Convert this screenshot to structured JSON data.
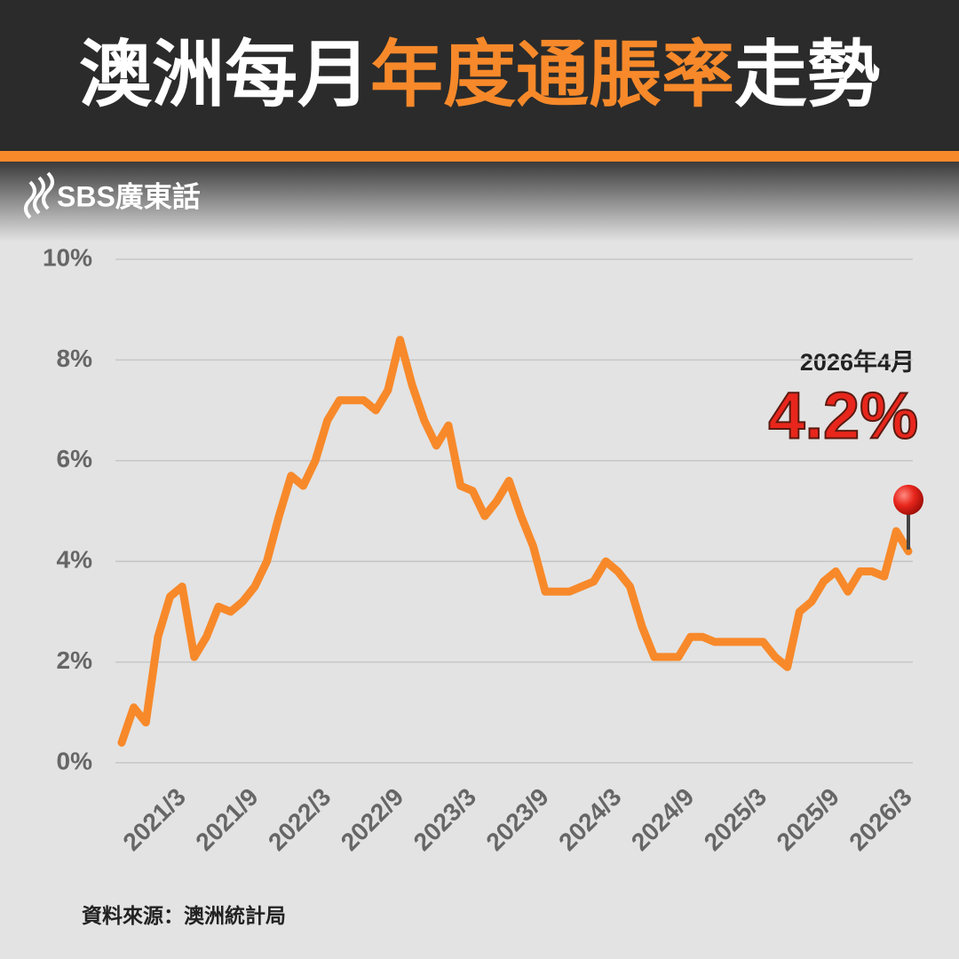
{
  "chart_data": {
    "type": "line",
    "title_parts": [
      "澳洲每月",
      "年度通脹率",
      "走勢"
    ],
    "logo": "SBS廣東話",
    "source": "資料來源：澳洲統計局",
    "annotation": {
      "date": "2026年4月",
      "value_label": "4.2%"
    },
    "categories": [
      null,
      null,
      null,
      null,
      "2021/3",
      null,
      null,
      null,
      null,
      null,
      "2021/9",
      null,
      null,
      null,
      null,
      null,
      "2022/3",
      null,
      null,
      null,
      null,
      null,
      "2022/9",
      null,
      null,
      null,
      null,
      null,
      "2023/3",
      null,
      null,
      null,
      null,
      null,
      "2023/9",
      null,
      null,
      null,
      null,
      null,
      "2024/3",
      null,
      null,
      null,
      null,
      null,
      "2024/9",
      null,
      null,
      null,
      null,
      null,
      "2025/3",
      null,
      null,
      null,
      null,
      null,
      "2025/9",
      null,
      null,
      null,
      null,
      null,
      "2026/3",
      null
    ],
    "series": [
      {
        "name": "年度通脹率",
        "color": "#f7892a",
        "values": [
          0.4,
          1.1,
          0.8,
          2.5,
          3.3,
          3.5,
          2.1,
          2.5,
          3.1,
          3.0,
          3.2,
          3.5,
          4.0,
          4.9,
          5.7,
          5.5,
          6.0,
          6.8,
          7.2,
          7.2,
          7.2,
          7.0,
          7.4,
          8.4,
          7.5,
          6.8,
          6.3,
          6.7,
          5.5,
          5.4,
          4.9,
          5.2,
          5.6,
          4.9,
          4.3,
          3.4,
          3.4,
          3.4,
          3.5,
          3.6,
          4.0,
          3.8,
          3.5,
          2.7,
          2.1,
          2.1,
          2.1,
          2.5,
          2.5,
          2.4,
          2.4,
          2.4,
          2.4,
          2.4,
          2.1,
          1.9,
          3.0,
          3.2,
          3.6,
          3.8,
          3.4,
          3.8,
          3.8,
          3.7,
          4.6,
          4.2
        ]
      }
    ],
    "ylim": [
      0,
      10
    ],
    "yticks": [
      {
        "value": 0,
        "label": "0%"
      },
      {
        "value": 2,
        "label": "2%"
      },
      {
        "value": 4,
        "label": "4%"
      },
      {
        "value": 6,
        "label": "6%"
      },
      {
        "value": 8,
        "label": "8%"
      },
      {
        "value": 10,
        "label": "10%"
      }
    ],
    "grid": true
  }
}
